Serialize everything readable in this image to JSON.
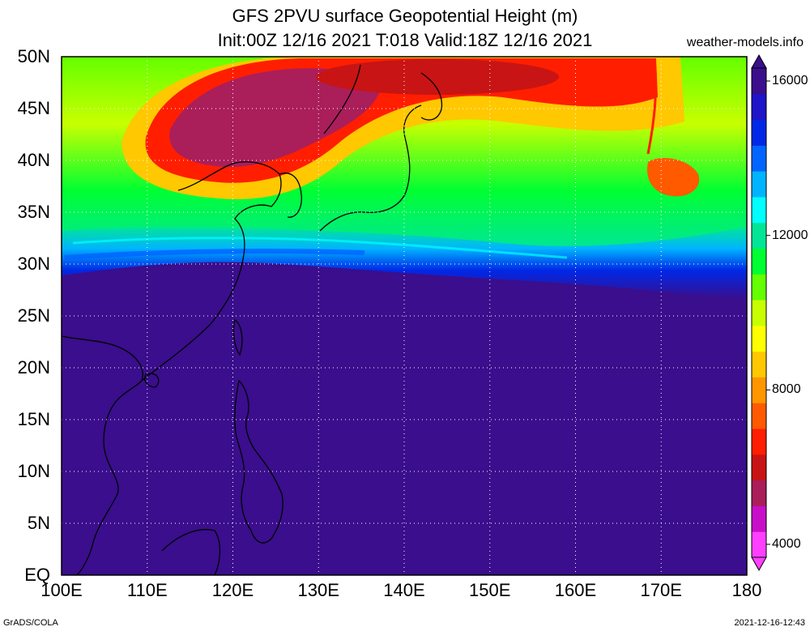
{
  "title": {
    "line1": "GFS 2PVU surface Geopotential Height (m)",
    "line2": "Init:00Z 12/16 2021 T:018 Valid:18Z 12/16 2021",
    "site": "weather-models.info"
  },
  "map": {
    "lon_range": [
      100,
      180
    ],
    "lat_range": [
      0,
      50
    ],
    "lat_labels": [
      "EQ",
      "5N",
      "10N",
      "15N",
      "20N",
      "25N",
      "30N",
      "35N",
      "40N",
      "45N",
      "50N"
    ],
    "lon_labels": [
      "100E",
      "110E",
      "120E",
      "130E",
      "140E",
      "150E",
      "160E",
      "170E",
      "180"
    ],
    "background_color": "#3a0e8c"
  },
  "colorbar": {
    "labels": [
      "16000",
      "12000",
      "8000",
      "4000"
    ],
    "colors": [
      "#ff40ff",
      "#c80fc8",
      "#aa1e5a",
      "#c81414",
      "#ff1e00",
      "#ff5a00",
      "#ff9600",
      "#ffc800",
      "#ffff00",
      "#c8ff00",
      "#64ff00",
      "#00ff32",
      "#00e696",
      "#00ffff",
      "#00b4ff",
      "#0064ff",
      "#0028e6",
      "#1e14c8",
      "#3a0e8c"
    ]
  },
  "footer": {
    "left": "GrADS/COLA",
    "right": "2021-12-16-12:43"
  }
}
